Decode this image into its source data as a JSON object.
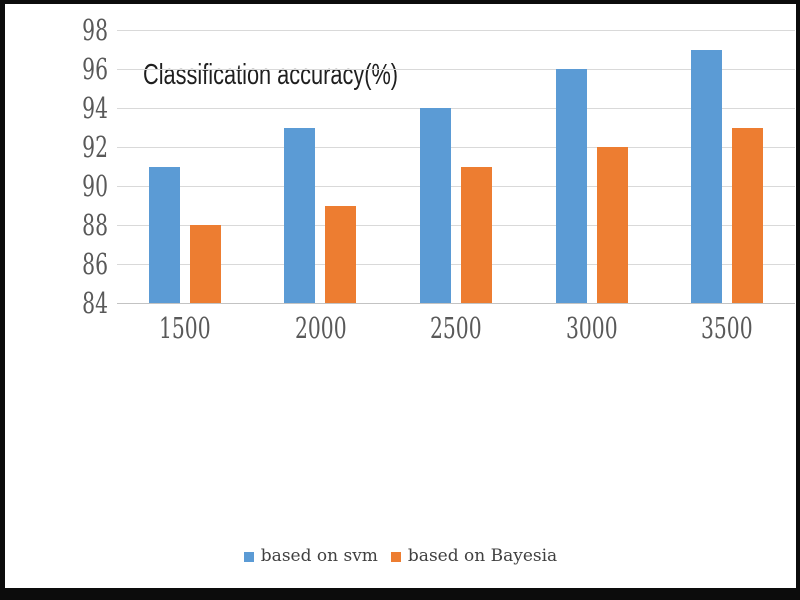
{
  "window": {
    "frame_color": "#0c0c0c",
    "canvas_color": "#ffffff"
  },
  "chart_data": {
    "type": "bar",
    "title": "Classification accuracy(%)",
    "categories": [
      "1500",
      "2000",
      "2500",
      "3000",
      "3500"
    ],
    "series": [
      {
        "name": "based on svm",
        "color": "#5b9bd5",
        "values": [
          91,
          93,
          94,
          96,
          97
        ]
      },
      {
        "name": "based on Bayesia",
        "color": "#ed7d31",
        "values": [
          88,
          89,
          91,
          92,
          93
        ]
      }
    ],
    "xlabel": "",
    "ylabel": "",
    "ylim": [
      84,
      98
    ],
    "ytick_step": 2,
    "yticks": [
      84,
      86,
      88,
      90,
      92,
      94,
      96,
      98
    ],
    "grid": "horizontal",
    "gridline_color": "#d9d9d9",
    "axis_line_color": "#c3c3c3",
    "tick_label_color": "#595959",
    "legend_position": "bottom"
  }
}
